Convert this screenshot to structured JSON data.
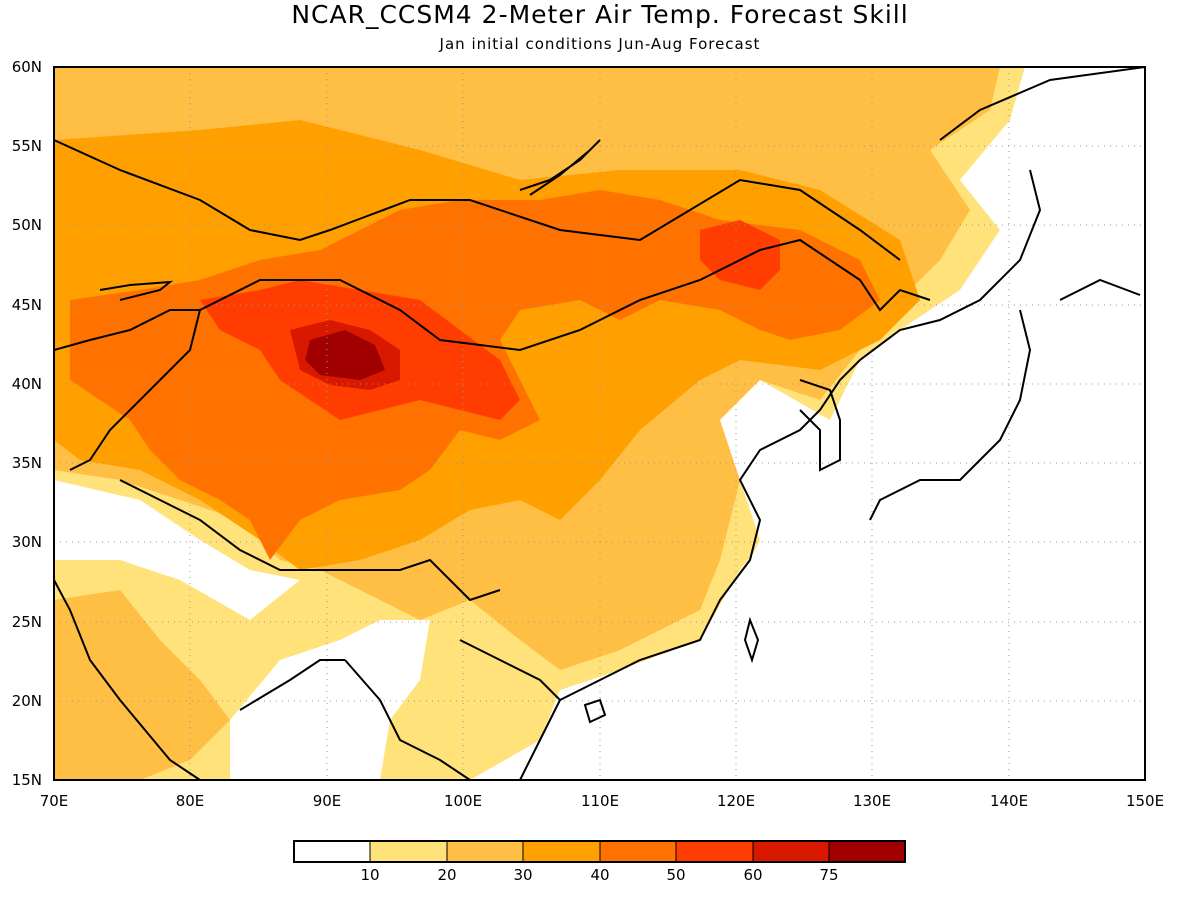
{
  "title": "NCAR_CCSM4 2-Meter Air Temp. Forecast Skill",
  "subtitle": "Jan initial conditions   Jun-Aug Forecast",
  "map": {
    "lon_range": [
      70,
      150
    ],
    "lat_range": [
      15,
      60
    ],
    "lon_ticks": [
      "70E",
      "80E",
      "90E",
      "100E",
      "110E",
      "120E",
      "130E",
      "140E",
      "150E"
    ],
    "lat_ticks": [
      "15N",
      "20N",
      "25N",
      "30N",
      "35N",
      "40N",
      "45N",
      "50N",
      "55N",
      "60N"
    ],
    "grid": "dotted"
  },
  "colorbar": {
    "levels": [
      "10",
      "20",
      "30",
      "40",
      "50",
      "60",
      "75"
    ],
    "colors": [
      "#ffffff",
      "#ffe27a",
      "#ffbe44",
      "#ffa000",
      "#ff7200",
      "#ff3d00",
      "#d81900",
      "#a00000"
    ]
  },
  "colors": {
    "land_outline": "#000000"
  }
}
